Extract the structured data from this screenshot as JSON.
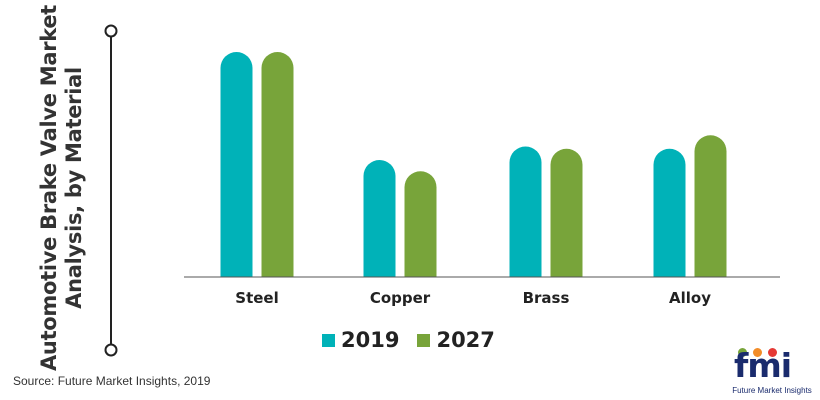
{
  "title_lines": [
    "Automotive Brake Valve Market",
    "Analysis, by Material"
  ],
  "source": "Source: Future Market Insights, 2019",
  "logo": {
    "text": "fmi",
    "tagline": "Future Market Insights"
  },
  "colors": {
    "s2019": "#00b2b8",
    "s2027": "#78a43a",
    "axis": "#555555",
    "bracket": "#222222"
  },
  "chart_data": {
    "type": "bar",
    "title": "Automotive Brake Valve Market Analysis, by Material",
    "categories": [
      "Steel",
      "Copper",
      "Brass",
      "Alloy"
    ],
    "series": [
      {
        "name": "2019",
        "values": [
          100,
          52,
          58,
          57
        ]
      },
      {
        "name": "2027",
        "values": [
          100,
          47,
          57,
          63
        ]
      }
    ],
    "ylim": [
      0,
      100
    ],
    "y_axis_shown": false,
    "grid": false,
    "legend": "bottom"
  }
}
